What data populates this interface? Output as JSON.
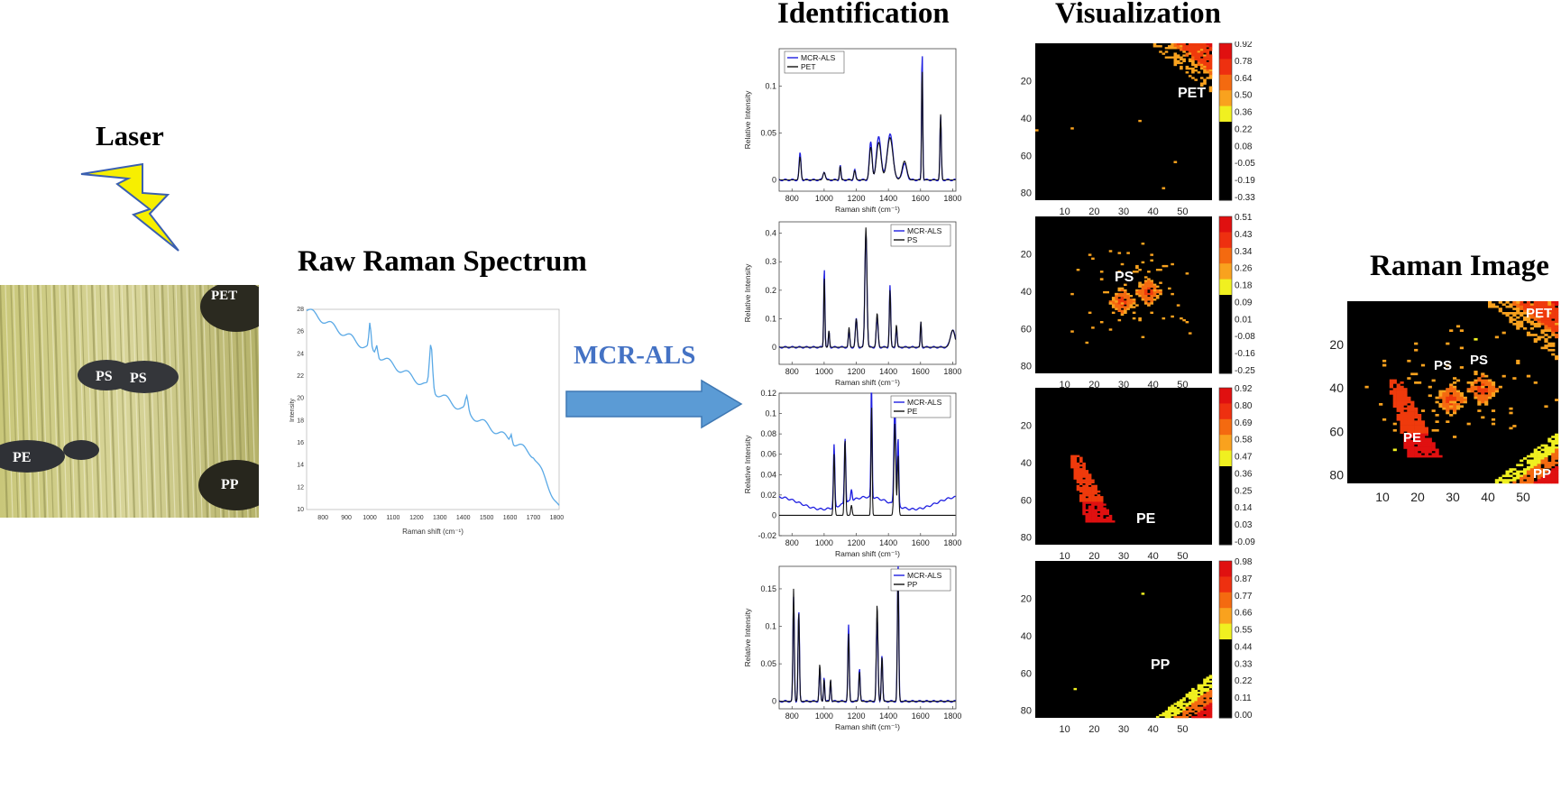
{
  "headers": {
    "laser": "Laser",
    "raw_spectrum": "Raw Raman Spectrum",
    "mcr_als": "MCR-ALS",
    "identification": "Identification",
    "visualization": "Visualization",
    "raman_image": "Raman Image"
  },
  "photo": {
    "labels": [
      "PET",
      "PS",
      "PS",
      "PE",
      "PP"
    ]
  },
  "raw_spectrum": {
    "xlabel": "Raman shift (cm⁻¹)",
    "ylabel": "Intensity",
    "xticks": [
      "800",
      "900",
      "1000",
      "1100",
      "1200",
      "1300",
      "1400",
      "1500",
      "1600",
      "1700",
      "1800"
    ],
    "yticks": [
      "10",
      "12",
      "14",
      "16",
      "18",
      "20",
      "22",
      "24",
      "26",
      "28"
    ],
    "color": "#5aa9e6"
  },
  "identification": {
    "xlabel": "Raman shift (cm⁻¹)",
    "ylabel": "Relative Intensity",
    "xticks": [
      "800",
      "1000",
      "1200",
      "1400",
      "1600",
      "1800"
    ],
    "colors": {
      "mcr": "#1f1fe0",
      "ref": "#111111"
    },
    "panels": [
      {
        "legend": [
          "MCR-ALS",
          "PET"
        ],
        "yticks": [
          "0",
          "0.05",
          "0.1"
        ]
      },
      {
        "legend": [
          "MCR-ALS",
          "PS"
        ],
        "yticks": [
          "0",
          "0.1",
          "0.2",
          "0.3",
          "0.4"
        ]
      },
      {
        "legend": [
          "MCR-ALS",
          "PE"
        ],
        "yticks": [
          "-0.02",
          "0",
          "0.02",
          "0.04",
          "0.06",
          "0.08",
          "0.1",
          "0.12"
        ]
      },
      {
        "legend": [
          "MCR-ALS",
          "PP"
        ],
        "yticks": [
          "0",
          "0.05",
          "0.1",
          "0.15"
        ]
      }
    ]
  },
  "visualization": {
    "xticks": [
      "10",
      "20",
      "30",
      "40",
      "50"
    ],
    "yticks": [
      "20",
      "40",
      "60",
      "80"
    ],
    "maps": [
      {
        "label": "PET",
        "colorbar": [
          "0.92",
          "0.78",
          "0.64",
          "0.50",
          "0.36",
          "0.22",
          "0.08",
          "-0.05",
          "-0.19",
          "-0.33"
        ]
      },
      {
        "label": "PS",
        "colorbar": [
          "0.51",
          "0.43",
          "0.34",
          "0.26",
          "0.18",
          "0.09",
          "0.01",
          "-0.08",
          "-0.16",
          "-0.25"
        ]
      },
      {
        "label": "PE",
        "colorbar": [
          "0.92",
          "0.80",
          "0.69",
          "0.58",
          "0.47",
          "0.36",
          "0.25",
          "0.14",
          "0.03",
          "-0.09"
        ]
      },
      {
        "label": "PP",
        "colorbar": [
          "0.98",
          "0.87",
          "0.77",
          "0.66",
          "0.55",
          "0.44",
          "0.33",
          "0.22",
          "0.11",
          "0.00"
        ]
      }
    ]
  },
  "raman_image": {
    "labels": [
      "PET",
      "PS",
      "PS",
      "PE",
      "PP"
    ],
    "xticks": [
      "10",
      "20",
      "30",
      "40",
      "50"
    ],
    "yticks": [
      "20",
      "40",
      "60",
      "80"
    ]
  }
}
